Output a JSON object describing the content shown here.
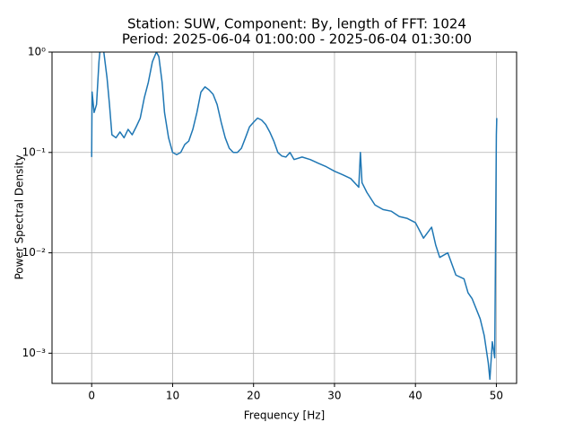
{
  "chart_data": {
    "type": "line",
    "title": "Station: SUW, Component: By, length of FFT: 1024",
    "subtitle": "Period: 2025-06-04 01:00:00 - 2025-06-04 01:30:00",
    "x_label": "Frequency [Hz]",
    "y_label": "Power Spectral Density",
    "x": [
      0,
      0.05,
      0.3,
      0.6,
      0.9,
      1.1,
      1.5,
      1.9,
      2.2,
      2.5,
      3,
      3.5,
      4,
      4.5,
      5,
      5.5,
      6,
      6.5,
      7,
      7.5,
      8,
      8.3,
      8.7,
      9,
      9.5,
      10,
      10.5,
      11,
      11.5,
      12,
      12.5,
      13,
      13.5,
      14,
      14.5,
      15,
      15.5,
      16,
      16.5,
      17,
      17.5,
      18,
      18.5,
      19,
      19.5,
      20,
      20.5,
      21,
      21.5,
      22,
      22.5,
      23,
      23.5,
      24,
      24.5,
      25,
      26,
      27,
      28,
      29,
      30,
      31,
      32,
      33,
      33.2,
      33.4,
      34,
      35,
      36,
      37,
      38,
      39,
      40,
      41,
      42,
      42.5,
      43,
      44,
      45,
      46,
      46.5,
      47,
      48,
      48.5,
      49,
      49.2,
      49.5,
      49.8,
      50,
      50.05
    ],
    "series": [
      {
        "name": "By",
        "color": "#1f77b4",
        "values": [
          0.09,
          0.4,
          0.25,
          0.3,
          0.8,
          1.2,
          1.0,
          0.55,
          0.3,
          0.15,
          0.14,
          0.16,
          0.14,
          0.17,
          0.15,
          0.18,
          0.22,
          0.35,
          0.5,
          0.8,
          1.0,
          0.9,
          0.5,
          0.25,
          0.14,
          0.1,
          0.095,
          0.1,
          0.12,
          0.13,
          0.17,
          0.25,
          0.4,
          0.45,
          0.42,
          0.38,
          0.3,
          0.2,
          0.14,
          0.11,
          0.1,
          0.1,
          0.11,
          0.14,
          0.18,
          0.2,
          0.22,
          0.21,
          0.19,
          0.16,
          0.13,
          0.1,
          0.092,
          0.09,
          0.1,
          0.085,
          0.09,
          0.085,
          0.078,
          0.072,
          0.065,
          0.06,
          0.055,
          0.045,
          0.1,
          0.05,
          0.04,
          0.03,
          0.027,
          0.026,
          0.023,
          0.022,
          0.02,
          0.014,
          0.018,
          0.012,
          0.009,
          0.01,
          0.006,
          0.0055,
          0.004,
          0.0035,
          0.0022,
          0.0015,
          0.0008,
          0.00055,
          0.0013,
          0.0009,
          0.15,
          0.22
        ]
      }
    ],
    "xlim": [
      -4.9,
      52.5
    ],
    "xticks": [
      0,
      10,
      20,
      30,
      40,
      50
    ],
    "ylim": [
      0.0005,
      1
    ],
    "yticks": [
      {
        "value": 0.001,
        "label": "10⁻³"
      },
      {
        "value": 0.01,
        "label": "10⁻²"
      },
      {
        "value": 0.1,
        "label": "10⁻¹"
      },
      {
        "value": 1,
        "label": "10⁰"
      }
    ],
    "log_y": true,
    "grid": true
  }
}
